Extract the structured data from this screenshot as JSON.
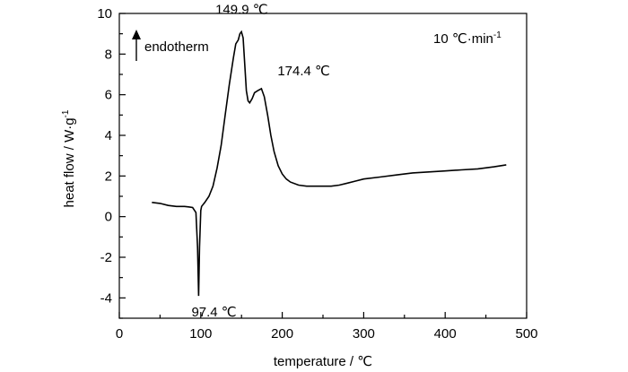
{
  "chart_data": {
    "type": "line",
    "xlabel": "temperature / ℃",
    "ylabel": "heat flow / W·g",
    "ylabel_sup": "-1",
    "xlim": [
      0,
      500
    ],
    "ylim": [
      -5,
      10
    ],
    "xticks": [
      0,
      100,
      200,
      300,
      400,
      500
    ],
    "yticks": [
      -4,
      -2,
      0,
      2,
      4,
      6,
      8,
      10
    ],
    "grid": false,
    "heating_rate_label": "10 ℃·min",
    "heating_rate_sup": "-1",
    "direction_label": "endotherm",
    "annotations": [
      {
        "text": "149.9 ℃",
        "x": 149.9,
        "y": 9.1
      },
      {
        "text": "174.4 ℃",
        "x": 174.4,
        "y": 6.3
      },
      {
        "text": "97.4 ℃",
        "x": 97.4,
        "y": -3.9
      }
    ],
    "series": [
      {
        "x": [
          40,
          50,
          60,
          70,
          80,
          85,
          90,
          94,
          96,
          97.4,
          98.5,
          100,
          101,
          105,
          110,
          115,
          120,
          125,
          130,
          135,
          140,
          143,
          146,
          148,
          149.9,
          152,
          154,
          156,
          158,
          160,
          163,
          166,
          170,
          174.4,
          178,
          182,
          186,
          190,
          195,
          200,
          205,
          210,
          220,
          230,
          240,
          250,
          260,
          270,
          280,
          290,
          300,
          320,
          340,
          360,
          380,
          400,
          420,
          440,
          460,
          475
        ],
        "y": [
          0.7,
          0.65,
          0.55,
          0.5,
          0.5,
          0.48,
          0.45,
          0.2,
          -1.5,
          -3.9,
          -1.5,
          0.3,
          0.5,
          0.7,
          1.0,
          1.5,
          2.4,
          3.5,
          5.0,
          6.5,
          7.8,
          8.5,
          8.7,
          9.0,
          9.1,
          8.8,
          7.5,
          6.2,
          5.7,
          5.6,
          5.8,
          6.1,
          6.2,
          6.3,
          5.9,
          5.0,
          4.0,
          3.2,
          2.5,
          2.1,
          1.85,
          1.7,
          1.55,
          1.5,
          1.5,
          1.5,
          1.5,
          1.55,
          1.65,
          1.75,
          1.85,
          1.95,
          2.05,
          2.15,
          2.2,
          2.25,
          2.3,
          2.35,
          2.45,
          2.55
        ]
      }
    ]
  }
}
